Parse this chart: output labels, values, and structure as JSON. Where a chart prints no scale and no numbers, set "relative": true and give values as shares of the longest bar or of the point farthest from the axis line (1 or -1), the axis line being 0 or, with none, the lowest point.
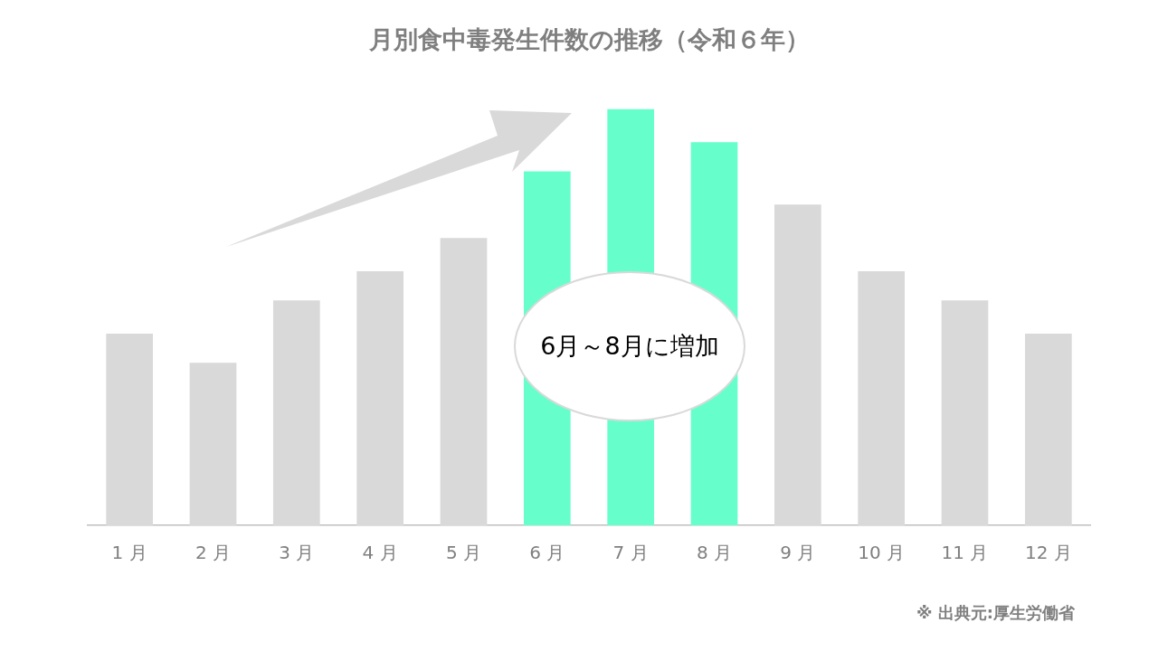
{
  "chart_data": {
    "type": "bar",
    "title": "月別食中毒発生件数の推移（令和６年）",
    "categories": [
      "1 月",
      "2 月",
      "3 月",
      "4 月",
      "5 月",
      "6 月",
      "7 月",
      "8 月",
      "9 月",
      "10 月",
      "11 月",
      "12 月"
    ],
    "values": [
      0.46,
      0.39,
      0.54,
      0.61,
      0.69,
      0.85,
      1,
      0.92,
      0.77,
      0.61,
      0.54,
      0.46
    ],
    "colors": [
      "#d9d9d9",
      "#d9d9d9",
      "#d9d9d9",
      "#d9d9d9",
      "#d9d9d9",
      "#66ffcc",
      "#66ffcc",
      "#66ffcc",
      "#d9d9d9",
      "#d9d9d9",
      "#d9d9d9",
      "#d9d9d9"
    ],
    "relative": true,
    "grid": false,
    "legend": false,
    "annotations": [
      "6月～8月に増加",
      "※ 出典元:厚生労働省"
    ]
  }
}
